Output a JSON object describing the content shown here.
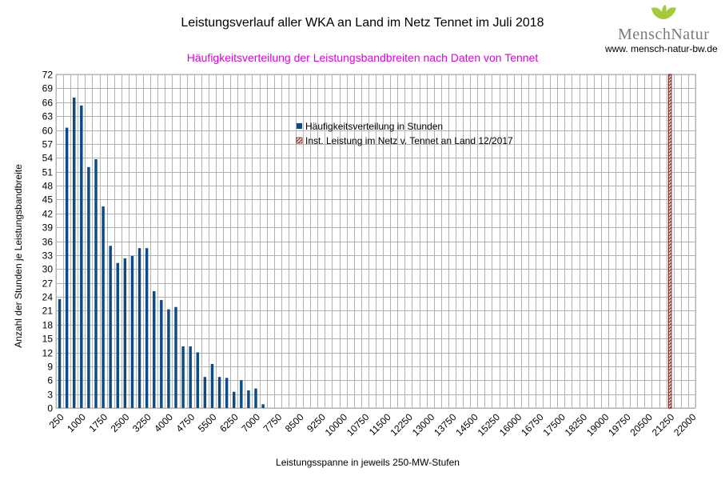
{
  "header": {
    "title": "Leistungsverlauf aller WKA an Land im Netz Tennet im Juli 2018",
    "subtitle": "Häufigkeitsverteilung der Leistungsbandbreiten nach Daten von Tennet",
    "subtitle_color": "#e000e0"
  },
  "logo": {
    "name_part1": "Mensch",
    "name_part2": "Natur",
    "url": "www. mensch-natur-bw.de",
    "leaf_color": "#a8c83c"
  },
  "chart_data": {
    "type": "bar",
    "xlabel": "Leistungsspanne in jeweils 250-MW-Stufen",
    "ylabel": "Anzahl der Stunden je Leistungsbandbreite",
    "ylim": [
      0,
      72
    ],
    "ytick_step": 3,
    "grid": true,
    "legend_position": "upper-center",
    "categories_step": 250,
    "categories_start": 250,
    "categories_end": 22000,
    "x_tick_labels": [
      "250",
      "1000",
      "1750",
      "2500",
      "3250",
      "4000",
      "4750",
      "5500",
      "6250",
      "7000",
      "7750",
      "8500",
      "9250",
      "10000",
      "10750",
      "11500",
      "12250",
      "13000",
      "13750",
      "14500",
      "15250",
      "16000",
      "16750",
      "17500",
      "18250",
      "19000",
      "19750",
      "20500",
      "21250",
      "22000"
    ],
    "series": [
      {
        "name": "Häufigkeitsverteilung in Stunden",
        "color": "#0d4a86",
        "x": [
          250,
          500,
          750,
          1000,
          1250,
          1500,
          1750,
          2000,
          2250,
          2500,
          2750,
          3000,
          3250,
          3500,
          3750,
          4000,
          4250,
          4500,
          4750,
          5000,
          5250,
          5500,
          5750,
          6000,
          6250,
          6500,
          6750,
          7000,
          7250
        ],
        "values": [
          23.5,
          60.5,
          67,
          65.3,
          52,
          53.7,
          43.5,
          35,
          31.3,
          32.3,
          32.8,
          34.5,
          34.5,
          25.2,
          23.3,
          21.3,
          21.8,
          13.3,
          13.3,
          12,
          6.7,
          9.5,
          6.7,
          6.5,
          3.5,
          6,
          3.8,
          4.2,
          0.8
        ]
      },
      {
        "name": "Inst. Leistung im Netz v. Tennet an Land 12/2017",
        "color": "#8b1a1a",
        "x": [
          21250
        ],
        "values": [
          72
        ]
      }
    ]
  }
}
